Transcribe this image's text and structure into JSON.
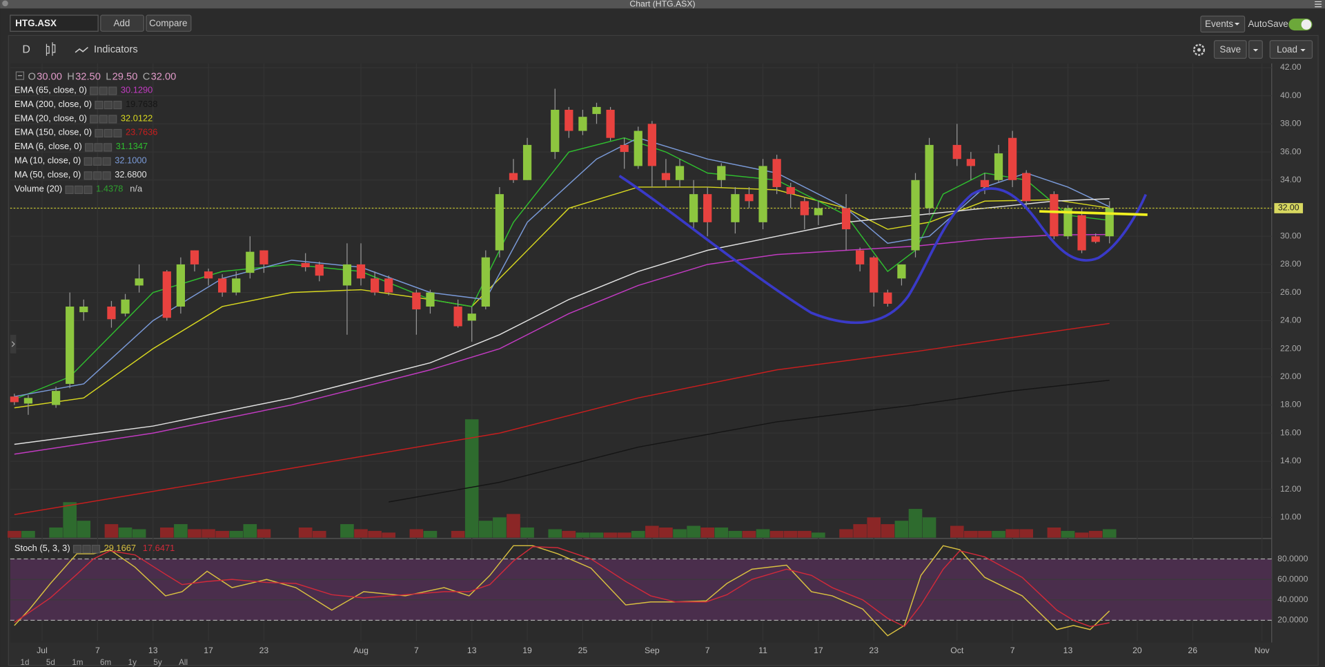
{
  "window": {
    "title": "Chart (HTG.ASX)"
  },
  "toolbar": {
    "symbol": "HTG.ASX",
    "add": "Add",
    "compare": "Compare",
    "events": "Events",
    "autosave": "AutoSave"
  },
  "chart_toolbar": {
    "period": "D",
    "indicators": "Indicators",
    "save": "Save",
    "load": "Load"
  },
  "ranges": [
    "1d",
    "5d",
    "1m",
    "6m",
    "1y",
    "5y",
    "All"
  ],
  "chart_data": {
    "type": "candlestick",
    "ohlc_legend": [
      {
        "key": "O",
        "value": "30.00"
      },
      {
        "key": "H",
        "value": "32.50"
      },
      {
        "key": "L",
        "value": "29.50"
      },
      {
        "key": "C",
        "value": "32.00"
      }
    ],
    "xlim": [
      -0.3,
      90.7
    ],
    "xticks": [
      {
        "value": 2,
        "label": "Jul"
      },
      {
        "value": 6,
        "label": "7"
      },
      {
        "value": 10,
        "label": "13"
      },
      {
        "value": 14,
        "label": "17"
      },
      {
        "value": 18,
        "label": "23"
      },
      {
        "value": 25,
        "label": "Aug"
      },
      {
        "value": 29,
        "label": "7"
      },
      {
        "value": 33,
        "label": "13"
      },
      {
        "value": 37,
        "label": "19"
      },
      {
        "value": 41,
        "label": "25"
      },
      {
        "value": 46,
        "label": "Sep"
      },
      {
        "value": 50,
        "label": "7"
      },
      {
        "value": 54,
        "label": "11"
      },
      {
        "value": 58,
        "label": "17"
      },
      {
        "value": 62,
        "label": "23"
      },
      {
        "value": 68,
        "label": "Oct"
      },
      {
        "value": 72,
        "label": "7"
      },
      {
        "value": 76,
        "label": "13"
      },
      {
        "value": 81,
        "label": "20"
      },
      {
        "value": 85,
        "label": "26"
      },
      {
        "value": 90,
        "label": "Nov"
      }
    ],
    "ylim": [
      8.56,
      42.3
    ],
    "yticks": [
      {
        "value": 10,
        "label": "10.00"
      },
      {
        "value": 12,
        "label": "12.00"
      },
      {
        "value": 14,
        "label": "14.00"
      },
      {
        "value": 16,
        "label": "16.00"
      },
      {
        "value": 18,
        "label": "18.00"
      },
      {
        "value": 20,
        "label": "20.00"
      },
      {
        "value": 22,
        "label": "22.00"
      },
      {
        "value": 24,
        "label": "24.00"
      },
      {
        "value": 26,
        "label": "26.00"
      },
      {
        "value": 28,
        "label": "28.00"
      },
      {
        "value": 30,
        "label": "30.00"
      },
      {
        "value": 32,
        "label": "32.00"
      },
      {
        "value": 34,
        "label": "34.00"
      },
      {
        "value": 36,
        "label": "36.00"
      },
      {
        "value": 38,
        "label": "38.00"
      },
      {
        "value": 40,
        "label": "40.00"
      },
      {
        "value": 42,
        "label": "42.00"
      }
    ],
    "grid": true,
    "up_color": "#8dc63f",
    "down_color": "#e8423f",
    "last_price": {
      "value": 32,
      "label": "32.00"
    },
    "x": [
      0,
      1,
      3,
      4,
      5,
      7,
      8,
      9,
      11,
      12,
      13,
      14,
      15,
      16,
      17,
      18,
      21,
      22,
      24,
      25,
      26,
      27,
      29,
      30,
      32,
      33,
      34,
      35,
      36,
      37,
      39,
      40,
      41,
      42,
      43,
      44,
      45,
      46,
      47,
      48,
      49,
      50,
      51,
      52,
      53,
      54,
      55,
      56,
      57,
      58,
      60,
      61,
      62,
      63,
      64,
      65,
      66,
      68,
      69,
      70,
      71,
      72,
      73,
      75,
      76,
      77,
      78,
      79
    ],
    "open": [
      18.6,
      18.1,
      18.0,
      19.5,
      24.6,
      25.0,
      24.5,
      26.5,
      27.5,
      25.0,
      29.0,
      27.5,
      27.0,
      26.0,
      27.4,
      29.0,
      28.1,
      28.0,
      26.5,
      28.0,
      27.0,
      27.0,
      26.0,
      25.0,
      25.0,
      24.0,
      25.0,
      29.0,
      34.5,
      34.0,
      36.0,
      39.0,
      37.5,
      38.7,
      39.0,
      36.5,
      35.0,
      38.0,
      34.5,
      34.0,
      31.0,
      33.0,
      34.0,
      31.0,
      33.0,
      31.0,
      35.5,
      33.5,
      32.5,
      31.5,
      32.0,
      29.0,
      28.5,
      26.0,
      27.0,
      29.0,
      32.0,
      36.5,
      35.5,
      34.0,
      34.0,
      37.0,
      34.5,
      33.0,
      30.0,
      31.5,
      30.0,
      30.0
    ],
    "high": [
      18.8,
      18.7,
      19.3,
      26.0,
      25.5,
      25.4,
      25.9,
      28.0,
      27.6,
      28.5,
      29.0,
      27.7,
      27.3,
      27.5,
      30.0,
      29.0,
      28.8,
      28.2,
      29.5,
      29.5,
      27.5,
      27.2,
      26.2,
      26.2,
      25.5,
      25.0,
      29.0,
      33.5,
      35.5,
      37.0,
      40.5,
      39.2,
      39.0,
      39.5,
      39.2,
      37.0,
      37.8,
      38.2,
      35.5,
      35.5,
      34.0,
      33.5,
      35.2,
      33.5,
      33.5,
      35.5,
      35.8,
      33.8,
      32.8,
      32.5,
      33.0,
      29.2,
      28.6,
      26.2,
      28.0,
      34.5,
      37.0,
      38.0,
      36.0,
      34.5,
      36.5,
      37.5,
      34.7,
      33.2,
      32.2,
      32.0,
      30.2,
      32.5
    ],
    "low": [
      18.0,
      17.3,
      17.8,
      19.2,
      24.0,
      23.5,
      24.3,
      26.0,
      24.0,
      24.5,
      27.5,
      26.5,
      25.7,
      25.8,
      27.0,
      27.4,
      27.5,
      26.8,
      23.0,
      26.5,
      25.8,
      25.8,
      23.0,
      24.5,
      23.5,
      22.5,
      24.8,
      28.5,
      33.8,
      34.0,
      35.5,
      37.0,
      37.2,
      38.0,
      36.8,
      34.8,
      34.8,
      33.5,
      33.5,
      33.5,
      30.5,
      30.0,
      33.5,
      30.2,
      32.0,
      30.5,
      33.0,
      32.0,
      30.5,
      30.8,
      29.0,
      27.5,
      25.0,
      25.0,
      26.5,
      28.5,
      31.5,
      35.0,
      34.0,
      33.0,
      33.8,
      33.5,
      32.0,
      29.8,
      29.8,
      28.8,
      29.5,
      29.5
    ],
    "close": [
      18.2,
      18.5,
      19.0,
      25.0,
      25.0,
      24.1,
      25.5,
      27.0,
      24.2,
      28.0,
      28.0,
      27.0,
      26.0,
      27.0,
      28.9,
      28.0,
      27.8,
      27.2,
      28.0,
      27.0,
      26.0,
      26.0,
      24.8,
      26.0,
      23.6,
      24.5,
      28.5,
      33.0,
      34.0,
      36.5,
      39.0,
      37.5,
      38.5,
      39.2,
      37.0,
      36.0,
      37.5,
      35.0,
      34.0,
      35.0,
      33.0,
      31.0,
      35.0,
      33.0,
      32.5,
      35.0,
      33.5,
      33.0,
      31.5,
      32.0,
      30.5,
      28.0,
      26.0,
      25.2,
      28.0,
      34.0,
      36.5,
      35.5,
      35.0,
      33.5,
      35.9,
      34.0,
      32.5,
      30.0,
      32.0,
      29.0,
      29.6,
      32.0
    ],
    "volume": {
      "name": "Volume (20)",
      "value_label": "1.4378",
      "extra_label": "n/a",
      "color": "#2fa02f",
      "ylim": [
        0,
        100
      ],
      "up_color": "#2e6b2e",
      "down_color": "#8b2626",
      "values": [
        4,
        4,
        6,
        21,
        10,
        8,
        6,
        5,
        6,
        8,
        5,
        5,
        4,
        4,
        8,
        5,
        6,
        4,
        8,
        5,
        4,
        3,
        5,
        4,
        4,
        70,
        10,
        12,
        14,
        6,
        5,
        4,
        3,
        3,
        3,
        3,
        4,
        7,
        6,
        5,
        7,
        6,
        6,
        4,
        4,
        5,
        4,
        4,
        4,
        3,
        5,
        8,
        12,
        8,
        10,
        17,
        12,
        7,
        4,
        4,
        4,
        5,
        5,
        6,
        4,
        3,
        4,
        5
      ]
    },
    "indicators": [
      {
        "name": "EMA (65, close, 0)",
        "value_label": "30.1290",
        "color": "#c23bc2",
        "x": [
          0,
          10,
          20,
          30,
          35,
          40,
          45,
          50,
          55,
          60,
          65,
          70,
          75,
          79
        ],
        "values": [
          14.5,
          16,
          18,
          20.5,
          22,
          24.5,
          26.5,
          28,
          28.7,
          29,
          29.3,
          29.8,
          30.1,
          30.13
        ]
      },
      {
        "name": "EMA (200, close, 0)",
        "value_label": "19.7638",
        "color": "#151515",
        "x": [
          27,
          35,
          45,
          55,
          65,
          72,
          79
        ],
        "values": [
          11.1,
          12.5,
          15,
          16.8,
          18,
          19,
          19.76
        ]
      },
      {
        "name": "EMA (20, close, 0)",
        "value_label": "32.0122",
        "color": "#d8d820",
        "x": [
          0,
          5,
          10,
          15,
          20,
          25,
          30,
          33,
          36,
          40,
          45,
          50,
          55,
          60,
          63,
          66,
          70,
          75,
          79
        ],
        "values": [
          17.8,
          18.5,
          22,
          25,
          26,
          26.2,
          25.5,
          25,
          28,
          32,
          33.5,
          33.5,
          33.3,
          32,
          30.5,
          31,
          32.5,
          32.6,
          32.01
        ]
      },
      {
        "name": "EMA (150, close, 0)",
        "value_label": "23.7636",
        "color": "#c81e1e",
        "x": [
          0,
          20,
          35,
          45,
          55,
          65,
          72,
          79
        ],
        "values": [
          10.2,
          13.5,
          16,
          18.5,
          20.5,
          21.8,
          22.8,
          23.8
        ]
      },
      {
        "name": "EMA (6, close, 0)",
        "value_label": "31.1347",
        "color": "#2fbf2f",
        "x": [
          0,
          4,
          7,
          10,
          15,
          20,
          25,
          30,
          33,
          36,
          40,
          44,
          47,
          50,
          55,
          60,
          63,
          65,
          67,
          70,
          73,
          76,
          79
        ],
        "values": [
          18.4,
          20,
          23,
          26,
          27.5,
          28,
          27.5,
          25.5,
          25,
          31,
          36,
          37,
          36,
          34.5,
          34,
          31.5,
          27.5,
          29,
          33,
          34.5,
          34,
          31.5,
          31.13
        ]
      },
      {
        "name": "MA (10, close, 0)",
        "value_label": "32.1000",
        "color": "#7a9ad8",
        "x": [
          0,
          5,
          10,
          15,
          20,
          25,
          30,
          34,
          37,
          42,
          45,
          50,
          55,
          60,
          63,
          66,
          70,
          73,
          76,
          79
        ],
        "values": [
          18.6,
          19.5,
          24,
          27,
          28.3,
          27.8,
          26,
          25.5,
          31,
          35.5,
          37,
          35.5,
          34.5,
          32,
          29.5,
          30,
          33.5,
          34.5,
          33.5,
          32.1
        ]
      },
      {
        "name": "MA (50, close, 0)",
        "value_label": "32.6800",
        "color": "#e2e2e2",
        "x": [
          0,
          10,
          20,
          30,
          35,
          40,
          45,
          50,
          55,
          60,
          65,
          70,
          75,
          79
        ],
        "values": [
          15.2,
          16.5,
          18.5,
          21,
          23,
          25.5,
          27.5,
          29,
          30,
          31,
          31.5,
          32,
          32.5,
          32.68
        ]
      }
    ],
    "stoch": {
      "title": "Stoch (5, 3, 3)",
      "ylim": [
        0,
        100
      ],
      "yticks": [
        {
          "value": 20,
          "label": "20.0000"
        },
        {
          "value": 40,
          "label": "40.0000"
        },
        {
          "value": 60,
          "label": "60.0000"
        },
        {
          "value": 80,
          "label": "80.0000"
        }
      ],
      "x": [
        0,
        1.1,
        2.6,
        4.5,
        5.7,
        6.9,
        8.7,
        10.9,
        12.1,
        13.9,
        15.7,
        18.2,
        20.3,
        22.9,
        25.2,
        28.2,
        31,
        32.8,
        34.3,
        36,
        37.4,
        39.2,
        41.6,
        44.1,
        45.9,
        47.7,
        49.9,
        51.4,
        53.2,
        55.7,
        57.5,
        59,
        61.2,
        63,
        64.2,
        65.4,
        67,
        68.2,
        70,
        72.7,
        75.2,
        76.4,
        77.6,
        79
      ],
      "series": [
        {
          "value_label": "29.1667",
          "color": "#d8c040",
          "values": [
            15,
            31,
            56,
            85,
            85,
            89,
            72,
            44,
            48,
            68,
            52,
            60,
            52,
            30,
            48,
            44,
            52,
            44,
            64,
            93,
            93,
            85,
            71,
            35,
            38,
            38,
            39,
            56,
            70,
            74,
            48,
            44,
            31,
            5,
            15,
            64,
            93,
            89,
            62,
            44,
            11,
            15,
            11,
            29.1667
          ]
        },
        {
          "value_label": "17.6471",
          "color": "#d02a3a",
          "values": [
            18,
            28,
            42,
            65,
            80,
            88,
            84,
            65,
            55,
            58,
            60,
            57,
            56,
            45,
            42,
            45,
            48,
            48,
            55,
            78,
            92,
            91,
            80,
            58,
            44,
            38,
            38,
            45,
            60,
            70,
            64,
            52,
            40,
            22,
            14,
            35,
            70,
            88,
            82,
            62,
            30,
            20,
            14,
            17.6471
          ]
        }
      ]
    }
  }
}
